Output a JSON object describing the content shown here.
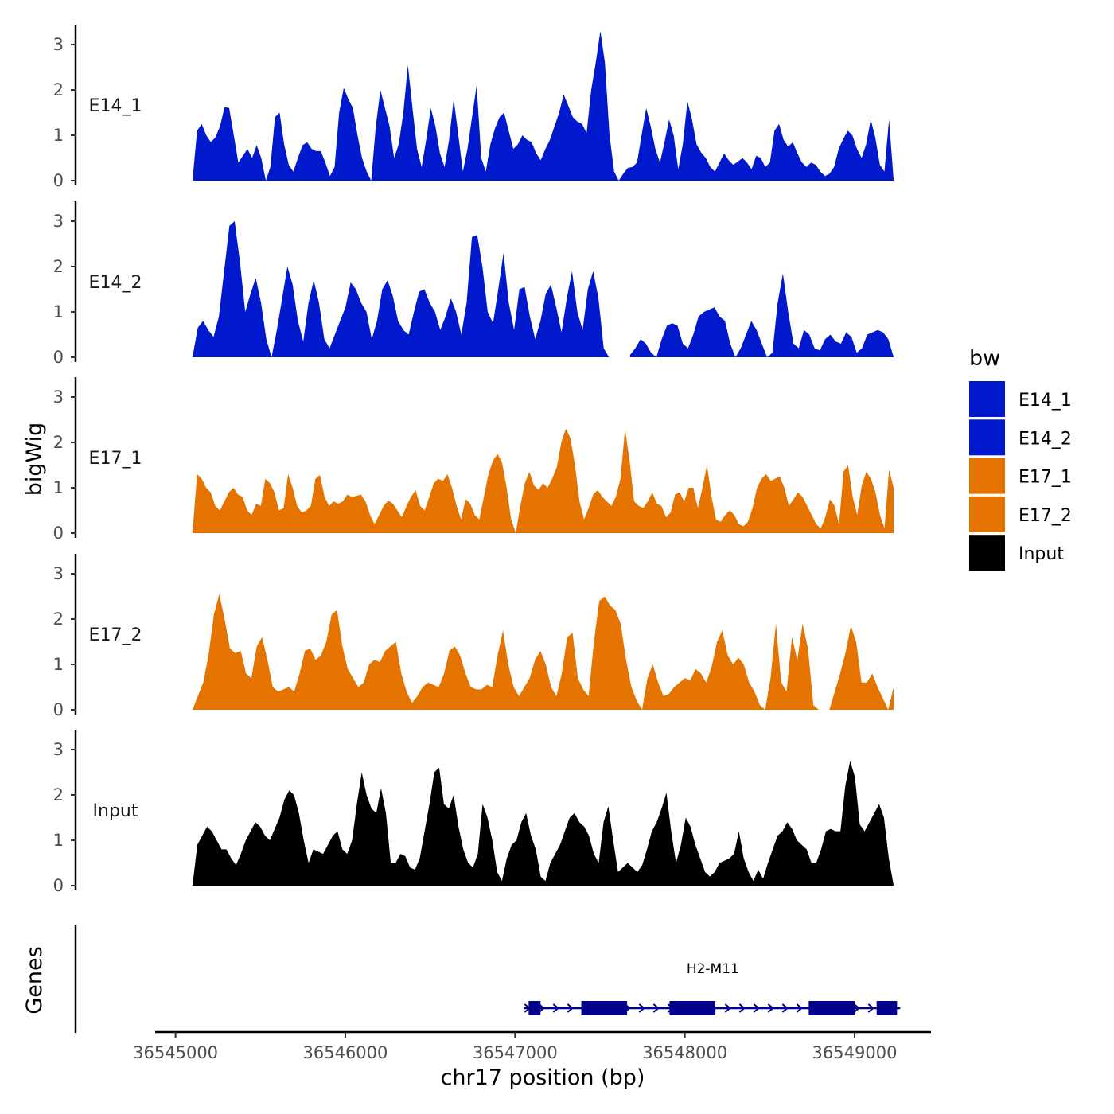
{
  "chart_data": {
    "type": "area",
    "chromosome": "chr17",
    "xlabel": "chr17 position (bp)",
    "ylabel": "bigWig",
    "xlim": [
      36544880,
      36549450
    ],
    "data_range": [
      36545100,
      36549230
    ],
    "ylim": [
      0,
      3.4
    ],
    "y_ticks": [
      "0",
      "1",
      "2",
      "3"
    ],
    "x_ticks": [
      {
        "value": 36545000,
        "label": "36545000"
      },
      {
        "value": 36546000,
        "label": "36546000"
      },
      {
        "value": 36547000,
        "label": "36547000"
      },
      {
        "value": 36548000,
        "label": "36548000"
      },
      {
        "value": 36549000,
        "label": "36549000"
      }
    ],
    "legend": {
      "title": "bw",
      "entries": [
        {
          "label": "E14_1",
          "color": "#0019CC"
        },
        {
          "label": "E14_2",
          "color": "#0019CC"
        },
        {
          "label": "E17_1",
          "color": "#E57300"
        },
        {
          "label": "E17_2",
          "color": "#E57300"
        },
        {
          "label": "Input",
          "color": "#000000"
        }
      ]
    },
    "series": [
      {
        "name": "E14_1",
        "color": "#0019CC",
        "values": [
          0,
          1.1,
          1.25,
          1.0,
          0.85,
          0.95,
          1.2,
          1.62,
          1.6,
          1.0,
          0.4,
          0.55,
          0.7,
          0.5,
          0.78,
          0.5,
          0,
          0.3,
          1.4,
          1.5,
          0.8,
          0.35,
          0.2,
          0.5,
          0.78,
          0.85,
          0.7,
          0.65,
          0.65,
          0.4,
          0.1,
          0.3,
          1.5,
          2.05,
          1.8,
          1.6,
          1.0,
          0.5,
          0.2,
          0,
          1.2,
          2.0,
          1.6,
          1.2,
          0.5,
          0.8,
          1.5,
          2.55,
          1.6,
          0.7,
          0.3,
          0.9,
          1.6,
          1.2,
          0.6,
          0.3,
          0.9,
          1.8,
          1.0,
          0.2,
          0.7,
          1.4,
          2.1,
          0.5,
          0.2,
          0.8,
          1.15,
          1.4,
          1.5,
          1.1,
          0.7,
          0.8,
          1.0,
          0.9,
          0.85,
          0.6,
          0.45,
          0.7,
          0.9,
          1.2,
          1.5,
          1.9,
          1.65,
          1.4,
          1.3,
          1.25,
          1.05,
          2.0,
          2.6,
          3.3,
          2.6,
          1.0,
          0.2,
          0,
          0.15,
          0.28,
          0.3,
          0.4,
          1.0,
          1.6,
          1.2,
          0.7,
          0.4,
          0.85,
          1.35,
          1.0,
          0.25,
          0.8,
          1.75,
          1.35,
          0.8,
          0.62,
          0.5,
          0.3,
          0.2,
          0.4,
          0.6,
          0.45,
          0.35,
          0.42,
          0.5,
          0.4,
          0.25,
          0.55,
          0.5,
          0.3,
          0.4,
          1.1,
          1.25,
          0.9,
          0.75,
          0.85,
          0.6,
          0.4,
          0.3,
          0.4,
          0.35,
          0.2,
          0.1,
          0.15,
          0.3,
          0.7,
          0.92,
          1.1,
          1.0,
          0.7,
          0.5,
          0.8,
          1.35,
          0.95,
          0.35,
          0.2,
          1.35,
          0
        ]
      },
      {
        "name": "E14_2",
        "color": "#0019CC",
        "values": [
          0,
          0.65,
          0.8,
          0.6,
          0.45,
          0.9,
          1.9,
          2.9,
          3.0,
          2.1,
          1.0,
          1.4,
          1.75,
          1.2,
          0.4,
          0,
          0.6,
          1.3,
          2.0,
          1.6,
          0.8,
          0.35,
          1.2,
          1.7,
          1.2,
          0.4,
          0.2,
          0.5,
          0.8,
          1.1,
          1.65,
          1.5,
          1.2,
          1.0,
          0.4,
          0.8,
          1.5,
          1.7,
          1.35,
          0.8,
          0.6,
          0.5,
          1.0,
          1.45,
          1.5,
          1.2,
          1.0,
          0.6,
          0.9,
          1.3,
          1.0,
          0.5,
          1.2,
          2.65,
          2.7,
          2.0,
          1.0,
          0.75,
          1.5,
          2.3,
          1.2,
          0.6,
          1.5,
          1.55,
          0.9,
          0.4,
          0.8,
          1.4,
          1.6,
          1.1,
          0.55,
          1.3,
          1.9,
          1.0,
          0.6,
          1.5,
          1.9,
          1.3,
          0.2,
          0,
          null,
          null,
          null,
          0.05,
          0.2,
          0.4,
          0.3,
          0.1,
          0,
          0.4,
          0.7,
          0.75,
          0.7,
          0.3,
          0.2,
          0.5,
          0.9,
          1.0,
          1.05,
          1.1,
          0.9,
          0.8,
          0.3,
          0,
          0.2,
          0.5,
          0.8,
          0.6,
          0.3,
          0,
          0.1,
          1.2,
          1.85,
          1.0,
          0.3,
          0.2,
          0.6,
          0.5,
          0.2,
          0.15,
          0.4,
          0.5,
          0.35,
          0.3,
          0.55,
          0.45,
          0.1,
          0.2,
          0.5,
          0.55,
          0.6,
          0.55,
          0.4,
          0
        ]
      },
      {
        "name": "E17_1",
        "color": "#E57300",
        "values": [
          0,
          1.3,
          1.2,
          1.0,
          0.9,
          0.6,
          0.5,
          0.7,
          0.9,
          1.0,
          0.85,
          0.8,
          0.5,
          0.4,
          0.65,
          0.6,
          1.2,
          1.1,
          0.9,
          0.5,
          0.55,
          1.3,
          1.0,
          0.6,
          0.45,
          0.5,
          0.6,
          1.2,
          1.28,
          0.8,
          0.6,
          0.7,
          0.65,
          0.7,
          0.85,
          0.8,
          0.82,
          0.85,
          0.7,
          0.4,
          0.2,
          0.4,
          0.6,
          0.72,
          0.65,
          0.5,
          0.35,
          0.6,
          0.8,
          0.95,
          0.6,
          0.5,
          0.8,
          1.1,
          1.2,
          1.15,
          1.3,
          1.0,
          0.6,
          0.3,
          0.75,
          0.65,
          0.4,
          0.3,
          0.8,
          1.3,
          1.6,
          1.75,
          1.55,
          1.0,
          0.3,
          0,
          0.6,
          1.1,
          1.35,
          1.05,
          0.95,
          1.1,
          1.0,
          1.2,
          1.45,
          2.0,
          2.3,
          2.1,
          1.5,
          0.7,
          0.3,
          0.55,
          0.85,
          0.95,
          0.8,
          0.7,
          0.6,
          0.8,
          1.2,
          2.3,
          1.6,
          0.7,
          0.6,
          0.55,
          0.7,
          0.9,
          0.65,
          0.6,
          0.35,
          0.45,
          0.85,
          0.9,
          0.7,
          1.0,
          1.0,
          0.55,
          1.0,
          1.5,
          0.8,
          0.3,
          0.25,
          0.4,
          0.5,
          0.4,
          0.2,
          0.15,
          0.25,
          0.55,
          1.0,
          1.2,
          1.3,
          1.15,
          1.2,
          1.25,
          1.0,
          0.6,
          0.75,
          0.9,
          0.8,
          0.6,
          0.4,
          0.2,
          0.1,
          0.35,
          0.75,
          0.6,
          0.2,
          1.35,
          1.5,
          0.8,
          0.4,
          1.05,
          1.35,
          1.2,
          0.9,
          0.4,
          0.1,
          1.4,
          1.0
        ]
      },
      {
        "name": "E17_2",
        "color": "#E57300",
        "values": [
          0,
          0.3,
          0.6,
          1.2,
          2.1,
          2.55,
          2.0,
          1.35,
          1.25,
          1.3,
          0.8,
          0.7,
          1.4,
          1.6,
          1.1,
          0.5,
          0.4,
          0.45,
          0.5,
          0.4,
          0.8,
          1.3,
          1.35,
          1.1,
          1.2,
          1.5,
          2.1,
          2.2,
          1.4,
          0.9,
          0.7,
          0.5,
          0.6,
          1.0,
          1.1,
          1.05,
          1.3,
          1.4,
          1.5,
          0.8,
          0.4,
          0.15,
          0.3,
          0.5,
          0.6,
          0.55,
          0.5,
          0.8,
          1.3,
          1.4,
          1.2,
          0.8,
          0.5,
          0.45,
          0.45,
          0.55,
          0.5,
          1.2,
          1.75,
          1.0,
          0.5,
          0.3,
          0.5,
          0.7,
          1.1,
          1.3,
          1.0,
          0.5,
          0.3,
          0.8,
          1.6,
          1.7,
          0.7,
          0.45,
          0.3,
          1.5,
          2.4,
          2.5,
          2.3,
          2.2,
          1.9,
          1.1,
          0.5,
          0.2,
          0,
          0.7,
          1.0,
          0.6,
          0.3,
          0.35,
          0.5,
          0.6,
          0.7,
          0.65,
          0.9,
          0.8,
          0.6,
          0.95,
          1.5,
          1.75,
          1.2,
          1.0,
          1.15,
          1.0,
          0.6,
          0.4,
          0.1,
          0,
          0.7,
          1.9,
          0.6,
          0.4,
          1.6,
          1.1,
          1.9,
          1.35,
          0.1,
          0,
          null,
          0,
          0.4,
          0.8,
          1.25,
          1.85,
          1.5,
          0.6,
          0.6,
          0.8,
          0.5,
          0.25,
          0,
          0.5
        ]
      },
      {
        "name": "Input",
        "color": "#000000",
        "values": [
          0,
          0.9,
          1.1,
          1.3,
          1.2,
          1.0,
          0.8,
          0.8,
          0.6,
          0.45,
          0.7,
          1.0,
          1.2,
          1.4,
          1.3,
          1.1,
          1.0,
          1.25,
          1.5,
          1.9,
          2.1,
          2.0,
          1.6,
          1.0,
          0.5,
          0.8,
          0.75,
          0.7,
          0.9,
          1.1,
          1.2,
          0.8,
          0.7,
          1.0,
          1.8,
          2.5,
          2.0,
          1.7,
          1.6,
          2.15,
          1.6,
          0.5,
          0.5,
          0.7,
          0.65,
          0.4,
          0.35,
          0.6,
          1.2,
          1.8,
          2.5,
          2.6,
          1.8,
          1.7,
          2.0,
          1.3,
          0.8,
          0.5,
          0.4,
          0.7,
          1.8,
          1.5,
          1.0,
          0.3,
          0.1,
          0.6,
          0.9,
          1.0,
          1.4,
          1.6,
          1.1,
          0.8,
          0.2,
          0.1,
          0.5,
          0.7,
          0.9,
          1.2,
          1.5,
          1.6,
          1.4,
          1.3,
          1.1,
          0.7,
          0.5,
          1.4,
          1.75,
          1.0,
          0.3,
          0.4,
          0.5,
          0.4,
          0.3,
          0.45,
          0.8,
          1.2,
          1.4,
          1.7,
          2.05,
          1.2,
          0.5,
          0.9,
          1.5,
          1.3,
          0.9,
          0.6,
          0.3,
          0.2,
          0.3,
          0.5,
          0.55,
          0.6,
          0.7,
          1.2,
          0.6,
          0.3,
          0.1,
          0.35,
          0.15,
          0.5,
          0.8,
          1.1,
          1.2,
          1.4,
          1.25,
          1.0,
          0.9,
          0.8,
          0.5,
          0.5,
          0.8,
          1.2,
          1.25,
          1.2,
          1.2,
          2.2,
          2.75,
          2.4,
          1.35,
          1.2,
          1.4,
          1.6,
          1.8,
          1.5,
          0.6,
          0
        ]
      }
    ],
    "genes_track": {
      "title": "Genes",
      "genes": [
        {
          "name": "H2-M11",
          "start": 36547080,
          "end": 36549250,
          "strand": "+",
          "color": "#00008B",
          "exons": [
            [
              36547080,
              36547150
            ],
            [
              36547390,
              36547660
            ],
            [
              36547910,
              36548180
            ],
            [
              36548730,
              36549000
            ],
            [
              36549130,
              36549250
            ]
          ]
        }
      ]
    }
  }
}
